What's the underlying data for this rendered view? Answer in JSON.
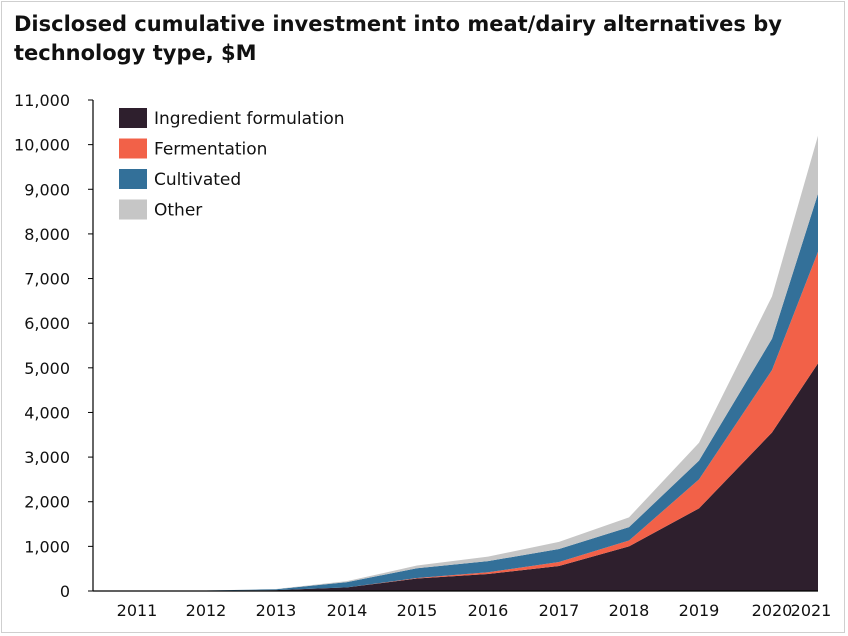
{
  "chart_data": {
    "type": "area",
    "stacked": true,
    "title": "Disclosed cumulative investment into meat/dairy alternatives by technology type, $M",
    "xlabel": "",
    "ylabel": "",
    "x": [
      "2011",
      "2012",
      "2013",
      "2014",
      "2015",
      "2016",
      "2017",
      "2018",
      "2019",
      "2020",
      "2021"
    ],
    "ylim": [
      0,
      11000
    ],
    "yticks": [
      0,
      1000,
      2000,
      3000,
      4000,
      5000,
      6000,
      7000,
      8000,
      9000,
      10000,
      11000
    ],
    "ytick_labels": [
      "0",
      "1,000",
      "2,000",
      "3,000",
      "4,000",
      "5,000",
      "6,000",
      "7,000",
      "8,000",
      "9,000",
      "10,000",
      "11,000"
    ],
    "grid": false,
    "legend_position": "top-left",
    "series": [
      {
        "name": "Ingredient formulation",
        "color": "#2e1f2d",
        "values": [
          0,
          5,
          20,
          80,
          280,
          380,
          560,
          1000,
          1850,
          3550,
          5100
        ]
      },
      {
        "name": "Fermentation",
        "color": "#f26148",
        "values": [
          0,
          0,
          0,
          0,
          10,
          40,
          90,
          130,
          650,
          1400,
          2500
        ]
      },
      {
        "name": "Cultivated",
        "color": "#337099",
        "values": [
          0,
          5,
          20,
          120,
          220,
          250,
          290,
          300,
          420,
          700,
          1300
        ]
      },
      {
        "name": "Other",
        "color": "#c6c6c6",
        "values": [
          0,
          0,
          5,
          20,
          60,
          100,
          160,
          220,
          400,
          950,
          1300
        ]
      }
    ]
  }
}
